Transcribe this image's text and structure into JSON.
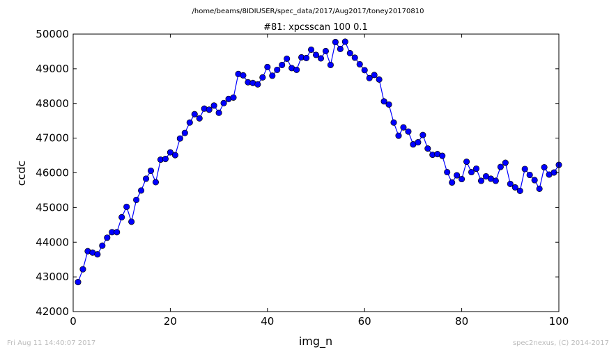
{
  "chart_data": {
    "type": "line",
    "suptitle": "/home/beams/8IDIUSER/spec_data/2017/Aug2017/toney20170810",
    "title": "#81: xpcsscan 100 0.1",
    "xlabel": "img_n",
    "ylabel": "ccdc",
    "xlim": [
      0,
      100
    ],
    "ylim": [
      42000,
      50000
    ],
    "xticks": [
      0,
      20,
      40,
      60,
      80,
      100
    ],
    "yticks": [
      42000,
      43000,
      44000,
      45000,
      46000,
      47000,
      48000,
      49000,
      50000
    ],
    "grid": false,
    "line_color": "#0000ff",
    "marker": "circle",
    "series": [
      {
        "x": [
          1,
          2,
          3,
          4,
          5,
          6,
          7,
          8,
          9,
          10,
          11,
          12,
          13,
          14,
          15,
          16,
          17,
          18,
          19,
          20,
          21,
          22,
          23,
          24,
          25,
          26,
          27,
          28,
          29,
          30,
          31,
          32,
          33,
          34,
          35,
          36,
          37,
          38,
          39,
          40,
          41,
          42,
          43,
          44,
          45,
          46,
          47,
          48,
          49,
          50,
          51,
          52,
          53,
          54,
          55,
          56,
          57,
          58,
          59,
          60,
          61,
          62,
          63,
          64,
          65,
          66,
          67,
          68,
          69,
          70,
          71,
          72,
          73,
          74,
          75,
          76,
          77,
          78,
          79,
          80,
          81,
          82,
          83,
          84,
          85,
          86,
          87,
          88,
          89,
          90,
          91,
          92,
          93,
          94,
          95,
          96,
          97,
          98,
          99,
          100
        ],
        "y": [
          42850,
          43220,
          43740,
          43700,
          43650,
          43900,
          44130,
          44290,
          44290,
          44720,
          45020,
          44590,
          45220,
          45490,
          45830,
          46060,
          45730,
          46380,
          46400,
          46590,
          46510,
          46990,
          47150,
          47450,
          47690,
          47570,
          47850,
          47820,
          47940,
          47730,
          48010,
          48130,
          48170,
          48850,
          48810,
          48610,
          48590,
          48550,
          48750,
          49050,
          48800,
          48970,
          49110,
          49290,
          49020,
          48970,
          49330,
          49310,
          49550,
          49400,
          49300,
          49510,
          49110,
          49770,
          49570,
          49780,
          49450,
          49320,
          49130,
          48960,
          48730,
          48820,
          48690,
          48060,
          47970,
          47450,
          47070,
          47310,
          47190,
          46820,
          46880,
          47090,
          46700,
          46520,
          46540,
          46490,
          46020,
          45720,
          45930,
          45820,
          46320,
          46020,
          46120,
          45770,
          45900,
          45830,
          45770,
          46170,
          46290,
          45680,
          45580,
          45480,
          46110,
          45940,
          45790,
          45540,
          46160,
          45950,
          46010,
          46230
        ]
      }
    ]
  },
  "footer": {
    "timestamp": "Fri Aug 11 14:40:07 2017",
    "credit": "spec2nexus, (C) 2014-2017"
  }
}
